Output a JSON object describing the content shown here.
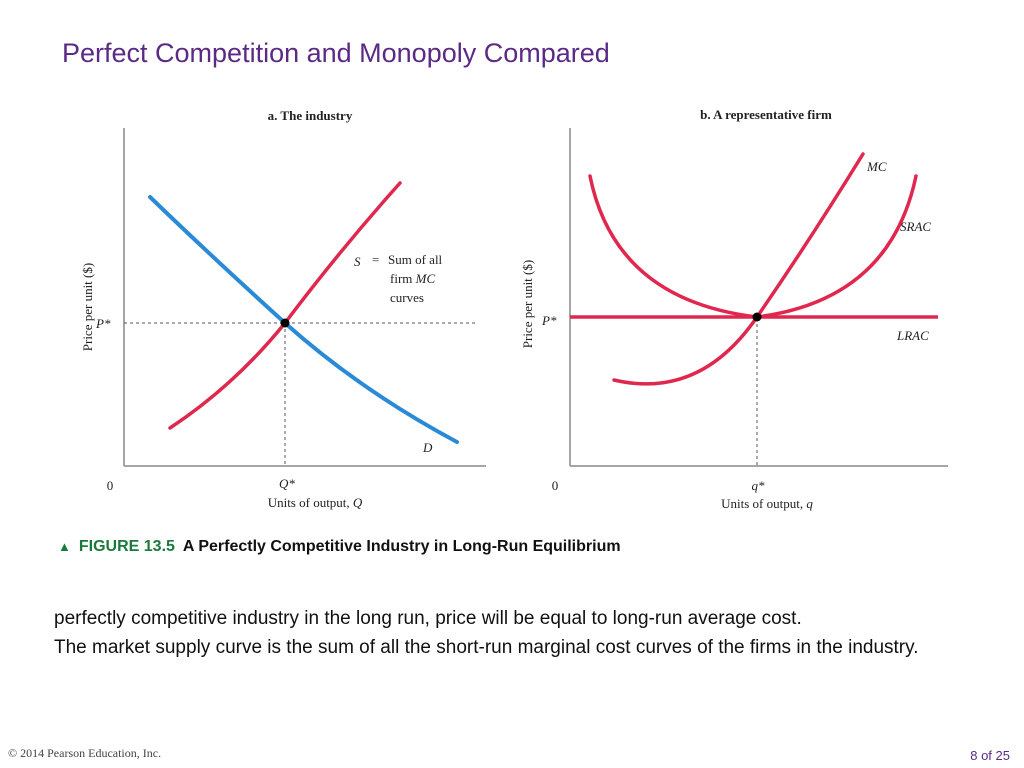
{
  "slide": {
    "title": "Perfect Competition and Monopoly Compared"
  },
  "panel_a": {
    "title": "a. The industry",
    "y_axis_label": "Price per unit ($)",
    "x_axis_label_prefix": "Units of output, ",
    "x_axis_label_var": "Q",
    "origin": "0",
    "price_label": "P*",
    "quantity_label": "Q*",
    "supply_label": "S",
    "supply_note_eq": "=",
    "supply_note_line1": "Sum of all",
    "supply_note_line2_prefix": "firm ",
    "supply_note_line2_var": "MC",
    "supply_note_line3": "curves",
    "demand_label": "D"
  },
  "panel_b": {
    "title": "b. A representative firm",
    "y_axis_label": "Price per unit ($)",
    "x_axis_label_prefix": "Units of output, ",
    "x_axis_label_var": "q",
    "origin": "0",
    "price_label": "P*",
    "quantity_label": "q*",
    "mc_label": "MC",
    "srac_label": "SRAC",
    "lrac_label": "LRAC"
  },
  "caption": {
    "marker": "▲",
    "figure_number": "FIGURE 13.5",
    "figure_title": "A Perfectly Competitive Industry in Long-Run Equilibrium"
  },
  "body": {
    "line1": "perfectly competitive industry in the long run, price will be equal to long-run average cost.",
    "line2": "The market supply curve is the sum of all the short-run marginal cost curves of the firms in the industry."
  },
  "footer": {
    "copyright": "© 2014 Pearson Education, Inc.",
    "page": "8 of 25"
  },
  "colors": {
    "title": "#5b2a86",
    "supply_red": "#e0284f",
    "demand_blue": "#2a8ad6",
    "figure_green": "#1a7a3c",
    "axis": "#888888"
  }
}
